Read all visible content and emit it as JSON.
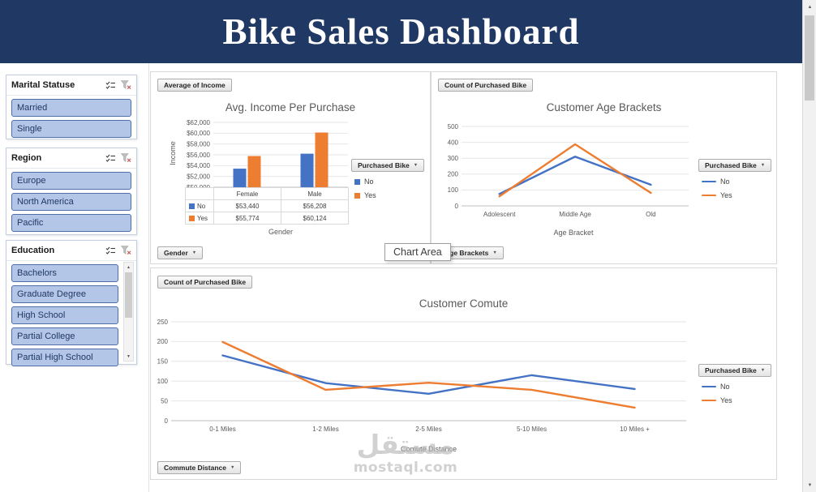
{
  "header": {
    "title": "Bike Sales Dashboard"
  },
  "sidebar": {
    "slicers": [
      {
        "title": "Marital Statuse",
        "items": [
          "Married",
          "Single"
        ]
      },
      {
        "title": "Region",
        "items": [
          "Europe",
          "North America",
          "Pacific"
        ]
      },
      {
        "title": "Education",
        "items": [
          "Bachelors",
          "Graduate Degree",
          "High School",
          "Partial College",
          "Partial High School"
        ]
      }
    ]
  },
  "tooltip": {
    "label": "Chart Area"
  },
  "watermark": {
    "line1": "مستقل",
    "line2": "mostaql.com"
  },
  "colors": {
    "no": "#4472C4",
    "yes": "#ED7D31",
    "header_bg": "#1F3864",
    "slicer_fill": "#B4C6E7",
    "slicer_border": "#4E6FA5"
  },
  "chart_data": [
    {
      "id": "income",
      "type": "bar",
      "title": "Avg. Income Per Purchase",
      "field_button": "Average of Income",
      "axis_button": "Gender",
      "legend_button": "Purchased Bike",
      "xlabel": "Gender",
      "ylabel": "Income",
      "categories": [
        "Female",
        "Male"
      ],
      "series": [
        {
          "name": "No",
          "values": [
            53440,
            56208
          ],
          "labels": [
            "$53,440",
            "$56,208"
          ]
        },
        {
          "name": "Yes",
          "values": [
            55774,
            60124
          ],
          "labels": [
            "$55,774",
            "$60,124"
          ]
        }
      ],
      "ylim": [
        50000,
        62000
      ],
      "ytick_step": 2000,
      "ytick_format": "usd",
      "legend_position": "right",
      "grid": true,
      "show_table": true
    },
    {
      "id": "age",
      "type": "line",
      "title": "Customer Age Brackets",
      "field_button": "Count of Purchased Bike",
      "axis_button": "Age Brackets",
      "legend_button": "Purchased Bike",
      "xlabel": "Age Bracket",
      "categories": [
        "Adolescent",
        "Middle Age",
        "Old"
      ],
      "series": [
        {
          "name": "No",
          "values": [
            75,
            310,
            133
          ]
        },
        {
          "name": "Yes",
          "values": [
            60,
            388,
            82
          ]
        }
      ],
      "ylim": [
        0,
        500
      ],
      "ytick_step": 100,
      "ytick_format": "plain",
      "legend_position": "right",
      "grid": true
    },
    {
      "id": "commute",
      "type": "line",
      "title": "Customer Comute",
      "field_button": "Count of Purchased Bike",
      "axis_button": "Commute Distance",
      "legend_button": "Purchased Bike",
      "xlabel": "Comute Distance",
      "categories": [
        "0-1 Miles",
        "1-2 Miles",
        "2-5 Miles",
        "5-10 Miles",
        "10 Miles +"
      ],
      "series": [
        {
          "name": "No",
          "values": [
            165,
            95,
            68,
            115,
            80
          ]
        },
        {
          "name": "Yes",
          "values": [
            199,
            78,
            96,
            78,
            33
          ]
        }
      ],
      "ylim": [
        0,
        250
      ],
      "ytick_step": 50,
      "ytick_format": "plain",
      "legend_position": "right",
      "grid": true
    }
  ]
}
